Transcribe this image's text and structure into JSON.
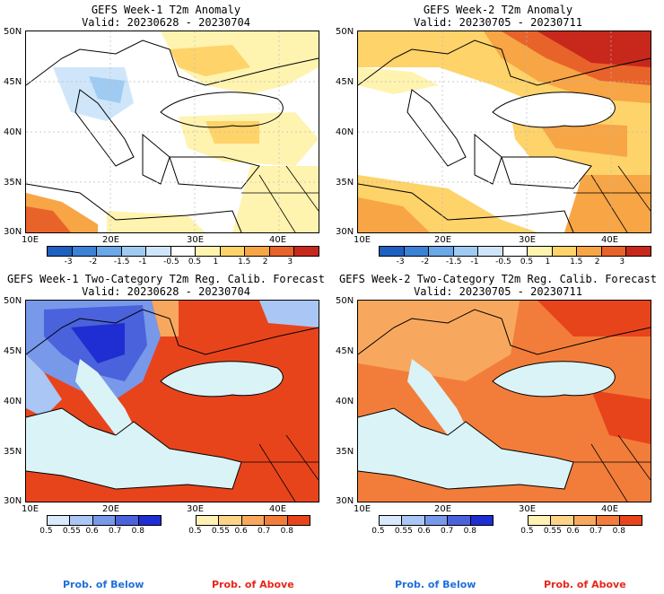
{
  "panels": [
    {
      "title": "GEFS Week-1 T2m Anomaly",
      "valid": "Valid: 20230628 - 20230704"
    },
    {
      "title": "GEFS Week-2 T2m Anomaly",
      "valid": "Valid: 20230705 - 20230711"
    },
    {
      "title": "GEFS Week-1 Two-Category T2m Reg. Calib. Forecast",
      "valid": "Valid: 20230628 - 20230704"
    },
    {
      "title": "GEFS Week-2 Two-Category T2m Reg. Calib. Forecast",
      "valid": "Valid: 20230705 - 20230711"
    }
  ],
  "lat_labels": [
    "50N",
    "45N",
    "40N",
    "35N",
    "30N"
  ],
  "lon_labels": [
    "10E",
    "20E",
    "30E",
    "40E"
  ],
  "anomaly_colorbar": {
    "ticks": [
      "-3",
      "-2",
      "-1.5",
      "-1",
      "-0.5",
      "0.5",
      "1",
      "1.5",
      "2",
      "3"
    ],
    "colors": [
      "#1f5fbf",
      "#3b82d6",
      "#6aa8e8",
      "#9fcbf2",
      "#cfe6fa",
      "#ffffff",
      "#fff3b0",
      "#fdd36a",
      "#f7a545",
      "#e8632a",
      "#c8281c"
    ]
  },
  "prob_colorbar": {
    "ticks": [
      "0.5",
      "0.55",
      "0.6",
      "0.7",
      "0.8"
    ],
    "below_colors": [
      "#d9e8fb",
      "#a9c6f4",
      "#7898ea",
      "#4a62dc",
      "#1f2ed2"
    ],
    "above_colors": [
      "#fff0b3",
      "#fcd387",
      "#f8a85e",
      "#f27d3a",
      "#e8441c"
    ],
    "below_label": "Prob. of Below",
    "above_label": "Prob. of Above",
    "below_color": "#1e6fd8",
    "above_color": "#e8251a"
  }
}
